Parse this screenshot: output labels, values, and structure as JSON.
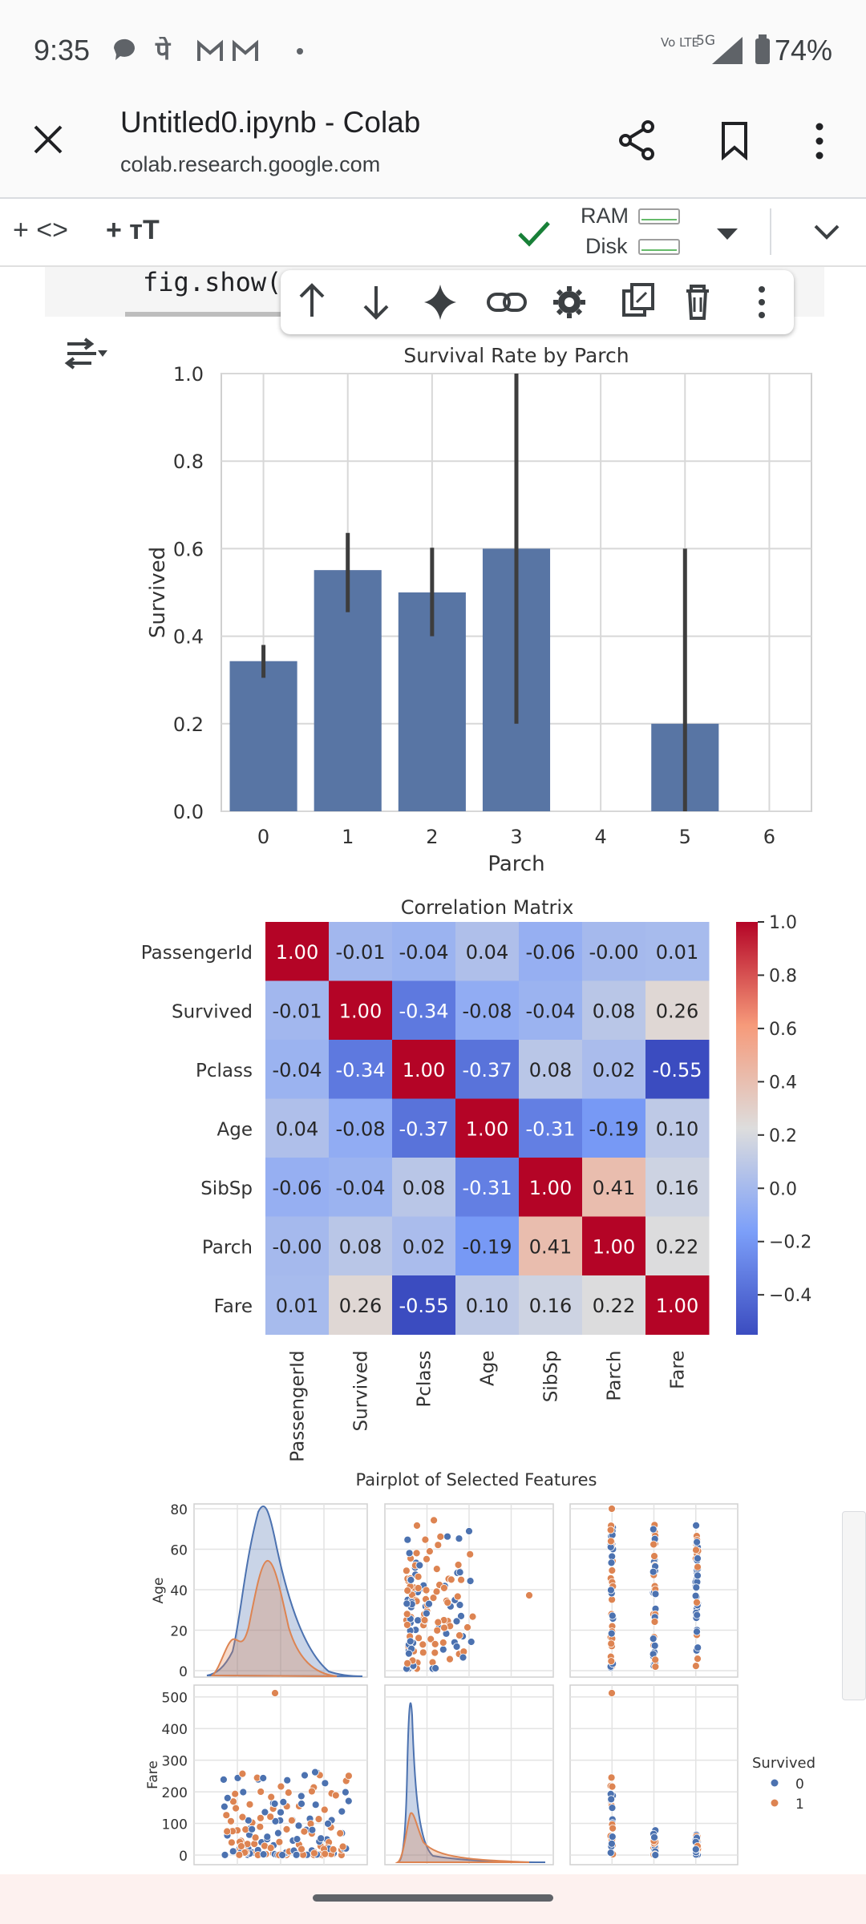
{
  "status_bar": {
    "time": "9:35",
    "notification_icons": [
      "chat-bubble-icon",
      "phonepe-icon",
      "gmail-icon",
      "gmail-icon",
      "dot-icon"
    ],
    "network_label": "Vo LTE",
    "network_gen": "5G",
    "battery": "74%"
  },
  "browser": {
    "title": "Untitled0.ipynb - Colab",
    "url": "colab.research.google.com"
  },
  "toolbar": {
    "add_code": "+ <>",
    "add_text": "+ тT",
    "ram_label": "RAM",
    "disk_label": "Disk"
  },
  "cell": {
    "code_line": "fig.show("
  },
  "cell_toolbar": {
    "icons": [
      "arrow-up-icon",
      "arrow-down-icon",
      "sparkle-icon",
      "link-icon",
      "gear-icon",
      "mirror-cell-icon",
      "trash-icon",
      "more-vert-icon"
    ]
  },
  "chart_data": [
    {
      "type": "bar",
      "title": "Survival Rate by Parch",
      "xlabel": "Parch",
      "ylabel": "Survived",
      "categories": [
        "0",
        "1",
        "2",
        "3",
        "4",
        "5",
        "6"
      ],
      "values": [
        0.343,
        0.551,
        0.5,
        0.6,
        null,
        0.2,
        null
      ],
      "error_low": [
        0.305,
        0.455,
        0.4,
        0.2,
        null,
        0.0,
        null
      ],
      "error_high": [
        0.38,
        0.636,
        0.602,
        1.0,
        null,
        0.6,
        null
      ],
      "ylim": [
        0,
        1.0
      ],
      "yticks": [
        "0.0",
        "0.2",
        "0.4",
        "0.6",
        "0.8",
        "1.0"
      ],
      "color": "#5875a4",
      "grid": true
    },
    {
      "type": "heatmap",
      "title": "Correlation Matrix",
      "labels": [
        "PassengerId",
        "Survived",
        "Pclass",
        "Age",
        "SibSp",
        "Parch",
        "Fare"
      ],
      "values": [
        [
          1.0,
          -0.01,
          -0.04,
          0.04,
          -0.06,
          -0.0,
          0.01
        ],
        [
          -0.01,
          1.0,
          -0.34,
          -0.08,
          -0.04,
          0.08,
          0.26
        ],
        [
          -0.04,
          -0.34,
          1.0,
          -0.37,
          0.08,
          0.02,
          -0.55
        ],
        [
          0.04,
          -0.08,
          -0.37,
          1.0,
          -0.31,
          -0.19,
          0.1
        ],
        [
          -0.06,
          -0.04,
          0.08,
          -0.31,
          1.0,
          0.41,
          0.16
        ],
        [
          -0.0,
          0.08,
          0.02,
          -0.19,
          0.41,
          1.0,
          0.22
        ],
        [
          0.01,
          0.26,
          -0.55,
          0.1,
          0.16,
          0.22,
          1.0
        ]
      ],
      "value_labels": [
        [
          "1.00",
          "-0.01",
          "-0.04",
          "0.04",
          "-0.06",
          "-0.00",
          "0.01"
        ],
        [
          "-0.01",
          "1.00",
          "-0.34",
          "-0.08",
          "-0.04",
          "0.08",
          "0.26"
        ],
        [
          "-0.04",
          "-0.34",
          "1.00",
          "-0.37",
          "0.08",
          "0.02",
          "-0.55"
        ],
        [
          "0.04",
          "-0.08",
          "-0.37",
          "1.00",
          "-0.31",
          "-0.19",
          "0.10"
        ],
        [
          "-0.06",
          "-0.04",
          "0.08",
          "-0.31",
          "1.00",
          "0.41",
          "0.16"
        ],
        [
          "-0.00",
          "0.08",
          "0.02",
          "-0.19",
          "0.41",
          "1.00",
          "0.22"
        ],
        [
          "0.01",
          "0.26",
          "-0.55",
          "0.10",
          "0.16",
          "0.22",
          "1.00"
        ]
      ],
      "colormap": "coolwarm",
      "colorbar_range": [
        -0.55,
        1.0
      ],
      "colorbar_ticks": [
        1.0,
        0.8,
        0.6,
        0.4,
        0.2,
        0.0,
        -0.2,
        -0.4
      ],
      "colorbar_tick_labels": [
        "1.0",
        "0.8",
        "0.6",
        "0.4",
        "0.2",
        "0.0",
        "−0.2",
        "−0.4"
      ]
    },
    {
      "type": "scatter",
      "title": "Pairplot of Selected Features",
      "row_labels": [
        "Age",
        "Fare"
      ],
      "age_ticks": [
        "0",
        "20",
        "40",
        "60",
        "80"
      ],
      "fare_ticks": [
        "0",
        "100",
        "200",
        "300",
        "400",
        "500"
      ],
      "legend_title": "Survived",
      "legend_entries": [
        "0",
        "1"
      ],
      "series_colors": [
        "#4c72b0",
        "#dd8452"
      ],
      "legend_position": "right",
      "grid": true
    }
  ]
}
